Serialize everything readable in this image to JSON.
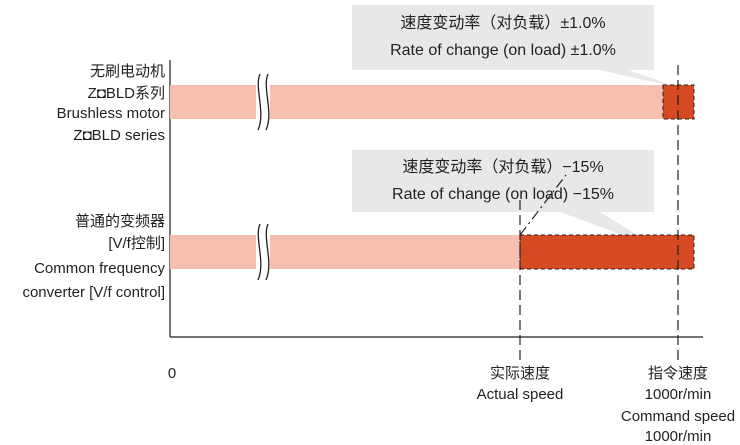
{
  "chart_data": {
    "type": "bar",
    "orientation": "horizontal",
    "x_axis": {
      "origin_label": "0",
      "ticks": [
        {
          "id": "actual",
          "lines": [
            "实际速度",
            "Actual speed"
          ]
        },
        {
          "id": "command",
          "lines": [
            "指令速度",
            "1000r/min",
            "Command speed",
            "1000r/min"
          ]
        }
      ]
    },
    "categories": [
      {
        "id": "bldc",
        "lines": [
          "无刷电动机",
          "Z◘BLD系列",
          "Brushless motor",
          "Z◘BLD series"
        ]
      },
      {
        "id": "vf",
        "lines": [
          "普通的变频器",
          "[V/f控制]",
          "Common frequency",
          "converter [V/f control]"
        ]
      }
    ],
    "series": [
      {
        "category": "bldc",
        "rate_of_change_percent": 1.0,
        "rate_of_change_sign": "±",
        "annotation": [
          "速度变动率（对负载）±1.0%",
          "Rate of change (on load) ±1.0%"
        ]
      },
      {
        "category": "vf",
        "rate_of_change_percent": -15,
        "rate_of_change_sign": "−",
        "annotation": [
          "速度变动率（对负载）−15%",
          "Rate of change (on load) −15%"
        ]
      }
    ],
    "x_axis_break": true,
    "colors": {
      "bar_fill": "#f6bfb0",
      "change_fill": "#d54a22",
      "callout_fill": "#e8e8e8",
      "axis": "#231f20"
    }
  }
}
